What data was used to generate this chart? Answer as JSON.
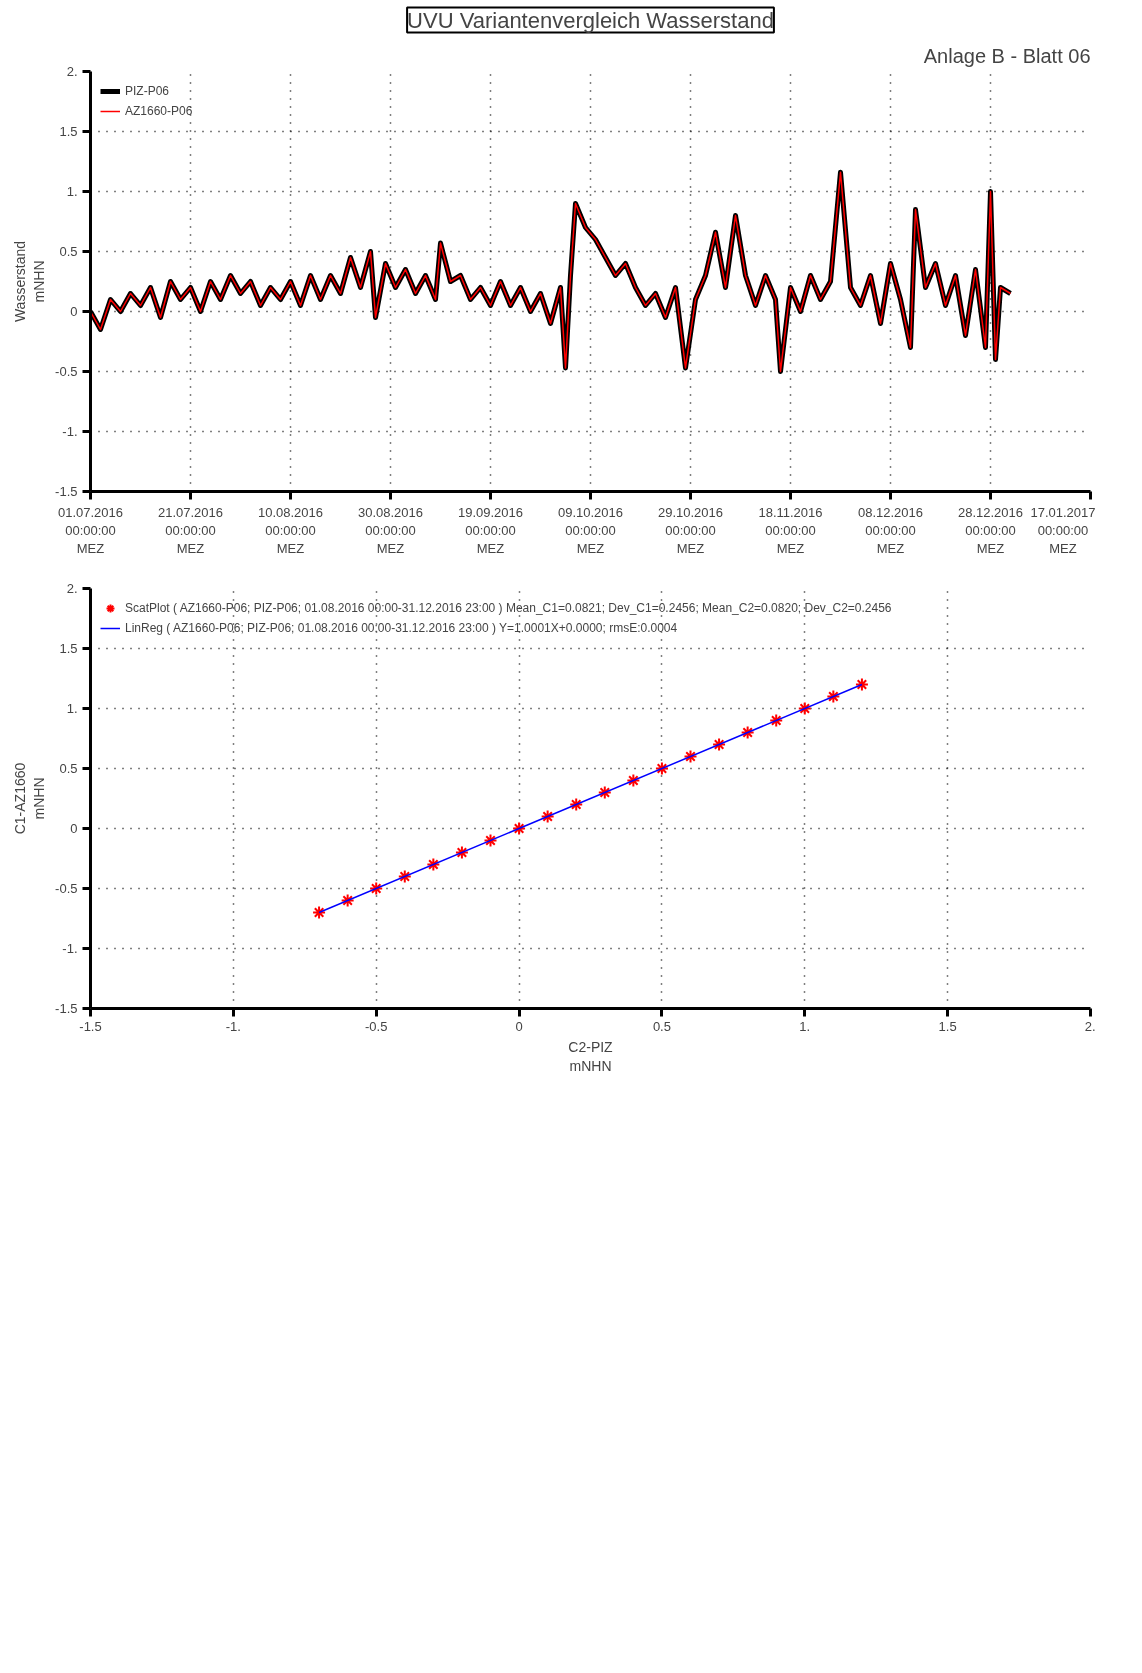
{
  "chart_data": [
    {
      "type": "line",
      "title": "UVU Variantenvergleich Wasserstand",
      "ylabel": "Wasserstand\nmNHN",
      "annotations": [
        "Anlage B - Blatt 06"
      ],
      "xlim": [
        "2016-07-01",
        "2017-01-17"
      ],
      "xticks": [
        {
          "value": "2016-07-01",
          "label": "01.07.2016\n00:00:00\nMEZ"
        },
        {
          "value": "2016-07-21",
          "label": "21.07.2016\n00:00:00\nMEZ"
        },
        {
          "value": "2016-08-10",
          "label": "10.08.2016\n00:00:00\nMEZ"
        },
        {
          "value": "2016-08-30",
          "label": "30.08.2016\n00:00:00\nMEZ"
        },
        {
          "value": "2016-09-19",
          "label": "19.09.2016\n00:00:00\nMEZ"
        },
        {
          "value": "2016-10-09",
          "label": "09.10.2016\n00:00:00\nMEZ"
        },
        {
          "value": "2016-10-29",
          "label": "29.10.2016\n00:00:00\nMEZ"
        },
        {
          "value": "2016-11-18",
          "label": "18.11.2016\n00:00:00\nMEZ"
        },
        {
          "value": "2016-12-08",
          "label": "08.12.2016\n00:00:00\nMEZ"
        },
        {
          "value": "2016-12-28",
          "label": "28.12.2016\n00:00:00\nMEZ"
        },
        {
          "value": "2017-01-17",
          "label": "17.01.2017\n00:00:00\nMEZ"
        }
      ],
      "ylim": [
        -1.5,
        2
      ],
      "yticks": [
        {
          "value": -1.5,
          "label": "-1.5"
        },
        {
          "value": -1,
          "label": "-1."
        },
        {
          "value": -0.5,
          "label": "-0.5"
        },
        {
          "value": 0,
          "label": "0"
        },
        {
          "value": 0.5,
          "label": "0.5"
        },
        {
          "value": 1,
          "label": "1."
        },
        {
          "value": 1.5,
          "label": "1.5"
        },
        {
          "value": 2,
          "label": "2."
        }
      ],
      "grid": true,
      "legend": "top left",
      "line_style": "solid",
      "x": [
        "2016-07-01",
        "2016-07-03",
        "2016-07-05",
        "2016-07-07",
        "2016-07-09",
        "2016-07-11",
        "2016-07-13",
        "2016-07-15",
        "2016-07-17",
        "2016-07-19",
        "2016-07-21",
        "2016-07-23",
        "2016-07-25",
        "2016-07-27",
        "2016-07-29",
        "2016-07-31",
        "2016-08-02",
        "2016-08-04",
        "2016-08-06",
        "2016-08-08",
        "2016-08-10",
        "2016-08-12",
        "2016-08-14",
        "2016-08-16",
        "2016-08-18",
        "2016-08-20",
        "2016-08-22",
        "2016-08-24",
        "2016-08-26",
        "2016-08-27",
        "2016-08-29",
        "2016-08-31",
        "2016-09-02",
        "2016-09-04",
        "2016-09-06",
        "2016-09-08",
        "2016-09-09",
        "2016-09-11",
        "2016-09-13",
        "2016-09-15",
        "2016-09-17",
        "2016-09-19",
        "2016-09-21",
        "2016-09-23",
        "2016-09-25",
        "2016-09-27",
        "2016-09-29",
        "2016-10-01",
        "2016-10-03",
        "2016-10-04",
        "2016-10-05",
        "2016-10-06",
        "2016-10-08",
        "2016-10-10",
        "2016-10-12",
        "2016-10-14",
        "2016-10-16",
        "2016-10-18",
        "2016-10-20",
        "2016-10-22",
        "2016-10-24",
        "2016-10-26",
        "2016-10-28",
        "2016-10-30",
        "2016-11-01",
        "2016-11-03",
        "2016-11-05",
        "2016-11-07",
        "2016-11-09",
        "2016-11-11",
        "2016-11-13",
        "2016-11-15",
        "2016-11-16",
        "2016-11-18",
        "2016-11-20",
        "2016-11-22",
        "2016-11-24",
        "2016-11-26",
        "2016-11-28",
        "2016-11-30",
        "2016-12-02",
        "2016-12-04",
        "2016-12-06",
        "2016-12-08",
        "2016-12-10",
        "2016-12-12",
        "2016-12-13",
        "2016-12-15",
        "2016-12-17",
        "2016-12-19",
        "2016-12-21",
        "2016-12-23",
        "2016-12-25",
        "2016-12-27",
        "2016-12-28",
        "2016-12-29",
        "2016-12-30",
        "2017-01-01"
      ],
      "series": [
        {
          "name": "PIZ-P06",
          "color": "#000000",
          "values": [
            0.0,
            -0.15,
            0.1,
            0.0,
            0.15,
            0.05,
            0.2,
            -0.05,
            0.25,
            0.1,
            0.2,
            0.0,
            0.25,
            0.1,
            0.3,
            0.15,
            0.25,
            0.05,
            0.2,
            0.1,
            0.25,
            0.05,
            0.3,
            0.1,
            0.3,
            0.15,
            0.45,
            0.2,
            0.5,
            -0.05,
            0.4,
            0.2,
            0.35,
            0.15,
            0.3,
            0.1,
            0.57,
            0.25,
            0.3,
            0.1,
            0.2,
            0.05,
            0.25,
            0.05,
            0.2,
            0.0,
            0.15,
            -0.1,
            0.2,
            -0.47,
            0.3,
            0.9,
            0.7,
            0.6,
            0.45,
            0.3,
            0.4,
            0.2,
            0.05,
            0.15,
            -0.05,
            0.2,
            -0.47,
            0.1,
            0.3,
            0.66,
            0.2,
            0.8,
            0.3,
            0.05,
            0.3,
            0.1,
            -0.5,
            0.2,
            0.0,
            0.3,
            0.1,
            0.25,
            1.16,
            0.2,
            0.05,
            0.3,
            -0.1,
            0.4,
            0.1,
            -0.3,
            0.85,
            0.2,
            0.4,
            0.05,
            0.3,
            -0.2,
            0.35,
            -0.3,
            1.0,
            -0.4,
            0.2,
            0.15
          ]
        },
        {
          "name": "AZ1660-P06",
          "color": "#ff0000",
          "values": [
            0.0,
            -0.15,
            0.1,
            0.0,
            0.15,
            0.05,
            0.2,
            -0.05,
            0.25,
            0.1,
            0.2,
            0.0,
            0.25,
            0.1,
            0.3,
            0.15,
            0.25,
            0.05,
            0.2,
            0.1,
            0.25,
            0.05,
            0.3,
            0.1,
            0.3,
            0.15,
            0.45,
            0.2,
            0.5,
            -0.05,
            0.4,
            0.2,
            0.35,
            0.15,
            0.3,
            0.1,
            0.57,
            0.25,
            0.3,
            0.1,
            0.2,
            0.05,
            0.25,
            0.05,
            0.2,
            0.0,
            0.15,
            -0.1,
            0.2,
            -0.47,
            0.3,
            0.9,
            0.7,
            0.6,
            0.45,
            0.3,
            0.4,
            0.2,
            0.05,
            0.15,
            -0.05,
            0.2,
            -0.47,
            0.1,
            0.3,
            0.66,
            0.2,
            0.8,
            0.3,
            0.05,
            0.3,
            0.1,
            -0.5,
            0.2,
            0.0,
            0.3,
            0.1,
            0.25,
            1.16,
            0.2,
            0.05,
            0.3,
            -0.1,
            0.4,
            0.1,
            -0.3,
            0.85,
            0.2,
            0.4,
            0.05,
            0.3,
            -0.2,
            0.35,
            -0.3,
            1.0,
            -0.4,
            0.2,
            0.15
          ]
        }
      ]
    },
    {
      "type": "scatter",
      "xlabel": "C2-PIZ\nmNHN",
      "ylabel": "C1-AZ1660\nmNHN",
      "xlim": [
        -1.5,
        2
      ],
      "ylim": [
        -1.5,
        2
      ],
      "xticks": [
        {
          "value": -1.5,
          "label": "-1.5"
        },
        {
          "value": -1,
          "label": "-1."
        },
        {
          "value": -0.5,
          "label": "-0.5"
        },
        {
          "value": 0,
          "label": "0"
        },
        {
          "value": 0.5,
          "label": "0.5"
        },
        {
          "value": 1,
          "label": "1."
        },
        {
          "value": 1.5,
          "label": "1.5"
        },
        {
          "value": 2,
          "label": "2."
        }
      ],
      "yticks": [
        {
          "value": -1.5,
          "label": "-1.5"
        },
        {
          "value": -1,
          "label": "-1."
        },
        {
          "value": -0.5,
          "label": "-0.5"
        },
        {
          "value": 0,
          "label": "0"
        },
        {
          "value": 0.5,
          "label": "0.5"
        },
        {
          "value": 1,
          "label": "1."
        },
        {
          "value": 1.5,
          "label": "1.5"
        },
        {
          "value": 2,
          "label": "2."
        }
      ],
      "grid": true,
      "legend": "top left",
      "series": [
        {
          "name": "ScatPlot ( AZ1660-P06; PIZ-P06; 01.08.2016 00:00-31.12.2016 23:00 ) Mean_C1=0.0821; Dev_C1=0.2456; Mean_C2=0.0820; Dev_C2=0.2456",
          "type": "scatter",
          "marker": "cross",
          "color": "#ff0000",
          "x": [
            -0.7,
            -0.6,
            -0.5,
            -0.4,
            -0.3,
            -0.2,
            -0.1,
            0,
            0.1,
            0.2,
            0.3,
            0.4,
            0.5,
            0.6,
            0.7,
            0.8,
            0.9,
            1.0,
            1.1,
            1.2
          ],
          "values": [
            -0.7,
            -0.6,
            -0.5,
            -0.4,
            -0.3,
            -0.2,
            -0.1,
            0,
            0.1,
            0.2,
            0.3,
            0.4,
            0.5,
            0.6,
            0.7,
            0.8,
            0.9,
            1.0,
            1.1,
            1.2
          ]
        },
        {
          "name": "LinReg ( AZ1660-P06; PIZ-P06; 01.08.2016 00:00-31.12.2016 23:00 ) Y=1.0001X+0.0000; rmsE:0.0004",
          "type": "line",
          "color": "#0000ff",
          "x": [
            -0.7,
            1.2
          ],
          "values": [
            -0.7,
            1.2
          ]
        }
      ]
    }
  ]
}
